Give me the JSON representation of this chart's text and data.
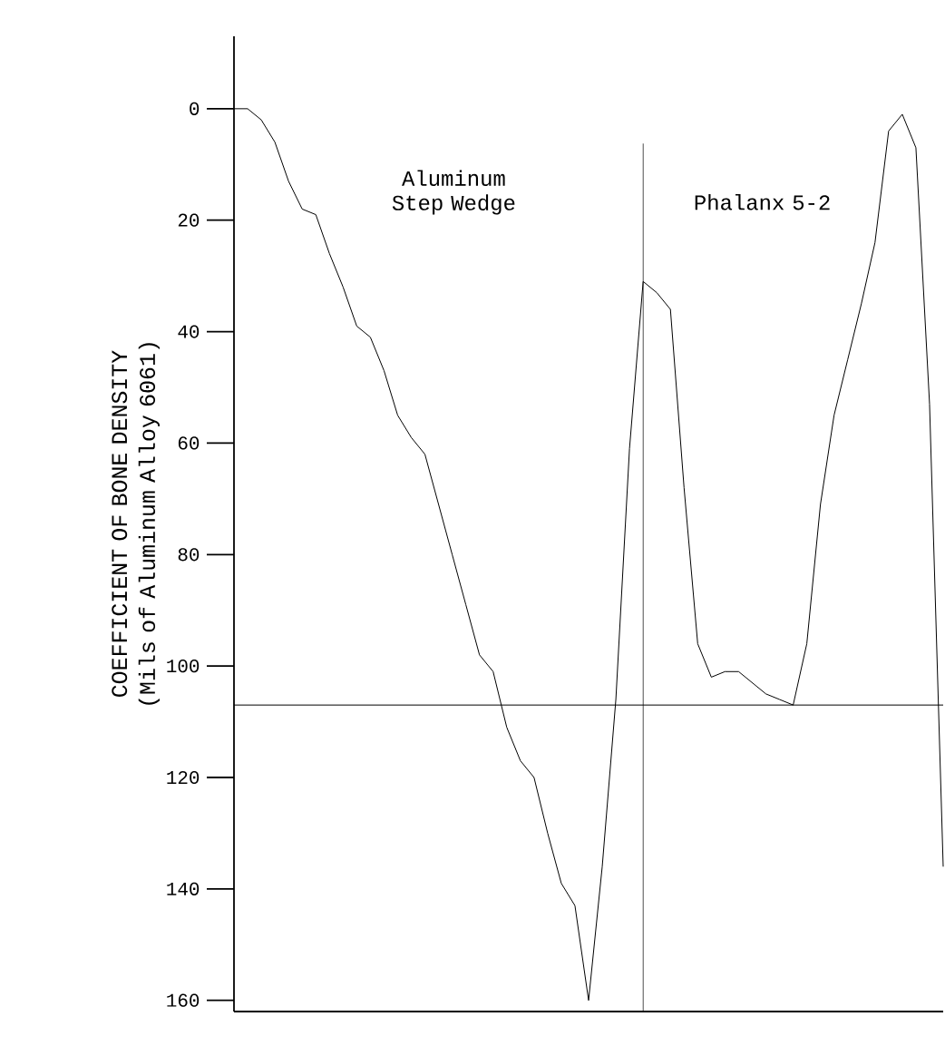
{
  "chart_data": {
    "type": "line",
    "ylabel": "COEFFICIENT OF BONE DENSITY (Mils of Aluminum Alloy 6061)",
    "annotations": [
      "Aluminum Step Wedge",
      "Phalanx 5-2"
    ],
    "categories": [
      null,
      null,
      null,
      null,
      null,
      null,
      null,
      null,
      null,
      null,
      null,
      null,
      null,
      null,
      null,
      null,
      null,
      null,
      null,
      null,
      null,
      null,
      null,
      null,
      null,
      null,
      null,
      null,
      null,
      null,
      null,
      null,
      null,
      null,
      null,
      null,
      null,
      null,
      null,
      null,
      null,
      null,
      null,
      null,
      null,
      null,
      null,
      null,
      null,
      null,
      null,
      null,
      null
    ],
    "values": [
      0,
      0,
      2,
      6,
      13,
      18,
      19,
      26,
      32,
      39,
      41,
      47,
      55,
      59,
      62,
      71,
      80,
      89,
      98,
      101,
      111,
      117,
      120,
      130,
      139,
      143,
      160,
      136,
      106,
      61,
      31,
      33,
      36,
      68,
      96,
      102,
      101,
      101,
      103,
      105,
      106,
      107,
      96,
      71,
      55,
      45,
      35,
      24,
      4,
      1,
      7,
      53,
      136
    ],
    "color": "#000000",
    "ylim": [
      162,
      -13
    ],
    "yticks": [
      0,
      20,
      40,
      60,
      80,
      100,
      120,
      140,
      160
    ],
    "ref_lines": [
      {
        "axis": "y",
        "value": 107
      }
    ],
    "tick_labels": "y"
  }
}
